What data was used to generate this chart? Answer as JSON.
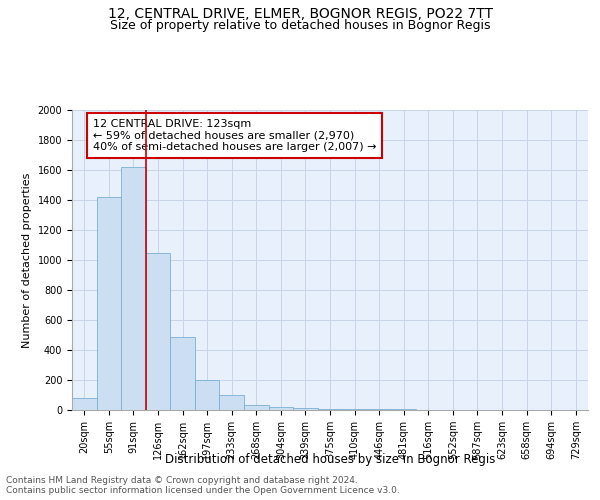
{
  "title": "12, CENTRAL DRIVE, ELMER, BOGNOR REGIS, PO22 7TT",
  "subtitle": "Size of property relative to detached houses in Bognor Regis",
  "xlabel": "Distribution of detached houses by size in Bognor Regis",
  "ylabel": "Number of detached properties",
  "bar_labels": [
    "20sqm",
    "55sqm",
    "91sqm",
    "126sqm",
    "162sqm",
    "197sqm",
    "233sqm",
    "268sqm",
    "304sqm",
    "339sqm",
    "375sqm",
    "410sqm",
    "446sqm",
    "481sqm",
    "516sqm",
    "552sqm",
    "587sqm",
    "623sqm",
    "658sqm",
    "694sqm",
    "729sqm"
  ],
  "bar_values": [
    80,
    1420,
    1620,
    1050,
    490,
    200,
    100,
    35,
    20,
    15,
    5,
    5,
    5,
    5,
    0,
    0,
    0,
    0,
    0,
    0,
    0
  ],
  "bar_color": "#ccdff2",
  "bar_edge_color": "#7bafd4",
  "vline_color": "#cc0000",
  "annotation_text": "12 CENTRAL DRIVE: 123sqm\n← 59% of detached houses are smaller (2,970)\n40% of semi-detached houses are larger (2,007) →",
  "annotation_box_color": "white",
  "annotation_box_edge_color": "#cc0000",
  "ylim": [
    0,
    2000
  ],
  "yticks": [
    0,
    200,
    400,
    600,
    800,
    1000,
    1200,
    1400,
    1600,
    1800,
    2000
  ],
  "background_color": "#e8f0fb",
  "grid_color": "#c8d4e8",
  "footer_text": "Contains HM Land Registry data © Crown copyright and database right 2024.\nContains public sector information licensed under the Open Government Licence v3.0.",
  "title_fontsize": 10,
  "subtitle_fontsize": 9,
  "xlabel_fontsize": 8.5,
  "ylabel_fontsize": 8,
  "tick_fontsize": 7,
  "annotation_fontsize": 8,
  "footer_fontsize": 6.5
}
